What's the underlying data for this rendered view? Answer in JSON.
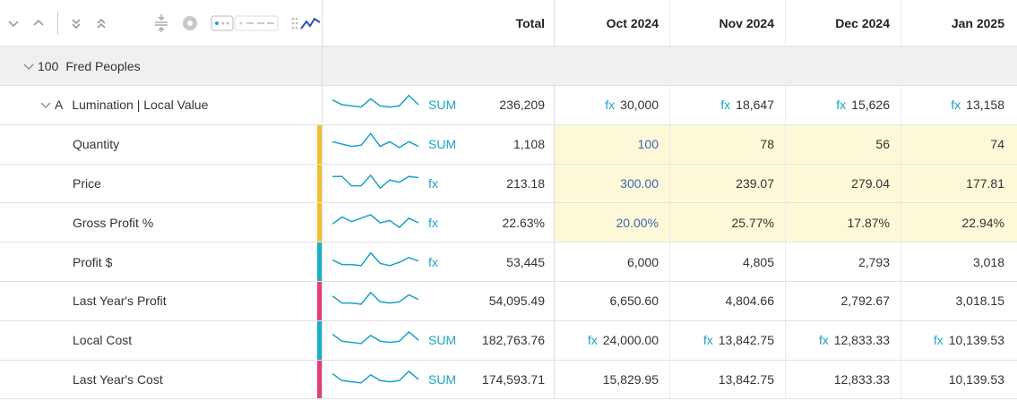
{
  "toolbar": {
    "icons": [
      "chevron-down-icon",
      "chevron-up-icon",
      "expand-all-icon",
      "collapse-all-icon",
      "align-icon",
      "settings-icon",
      "density-icon",
      "sparkline-toggle-icon"
    ]
  },
  "header": {
    "total": "Total",
    "months": [
      "Oct 2024",
      "Nov 2024",
      "Dec 2024",
      "Jan 2025"
    ]
  },
  "group": {
    "code": "100",
    "name": "Fred Peoples"
  },
  "rows": [
    {
      "label": "Lumination | Local Value",
      "prefix": "A",
      "agg": "SUM",
      "total": "236,209",
      "cells": [
        {
          "fx": true,
          "v": "30,000"
        },
        {
          "fx": true,
          "v": "18,647"
        },
        {
          "fx": true,
          "v": "15,626"
        },
        {
          "fx": true,
          "v": "13,158"
        }
      ],
      "spark": [
        0.7,
        0.5,
        0.45,
        0.4,
        0.75,
        0.45,
        0.4,
        0.45,
        0.9,
        0.5
      ]
    },
    {
      "label": "Quantity",
      "agg": "SUM",
      "total": "1,108",
      "bar": "#f0c030",
      "cells": [
        {
          "v": "100",
          "blue": true,
          "yellow": true
        },
        {
          "v": "78",
          "yellow": true
        },
        {
          "v": "56",
          "yellow": true
        },
        {
          "v": "74",
          "yellow": true
        }
      ],
      "spark": [
        0.6,
        0.5,
        0.4,
        0.45,
        0.95,
        0.4,
        0.6,
        0.35,
        0.6,
        0.4
      ]
    },
    {
      "label": "Price",
      "agg": "fx",
      "total": "213.18",
      "bar": "#f0c030",
      "cells": [
        {
          "v": "300.00",
          "blue": true,
          "yellow": true
        },
        {
          "v": "239.07",
          "yellow": true
        },
        {
          "v": "279.04",
          "yellow": true
        },
        {
          "v": "177.81",
          "yellow": true
        }
      ],
      "spark": [
        0.8,
        0.8,
        0.4,
        0.4,
        0.85,
        0.3,
        0.65,
        0.55,
        0.8,
        0.75
      ]
    },
    {
      "label": "Gross Profit %",
      "agg": "fx",
      "total": "22.63%",
      "bar": "#f0c030",
      "cells": [
        {
          "v": "20.00%",
          "blue": true,
          "yellow": true
        },
        {
          "v": "25.77%",
          "yellow": true
        },
        {
          "v": "17.87%",
          "yellow": true
        },
        {
          "v": "22.94%",
          "yellow": true
        }
      ],
      "spark": [
        0.45,
        0.75,
        0.55,
        0.7,
        0.85,
        0.5,
        0.6,
        0.3,
        0.7,
        0.5
      ]
    },
    {
      "label": "Profit $",
      "agg": "fx",
      "total": "53,445",
      "bar": "#1ab0c8",
      "cells": [
        {
          "v": "6,000"
        },
        {
          "v": "4,805"
        },
        {
          "v": "2,793"
        },
        {
          "v": "3,018"
        }
      ],
      "spark": [
        0.6,
        0.4,
        0.4,
        0.35,
        0.9,
        0.45,
        0.35,
        0.5,
        0.7,
        0.55
      ]
    },
    {
      "label": "Last Year's Profit",
      "agg": "",
      "total": "54,095.49",
      "bar": "#e0407a",
      "cells": [
        {
          "v": "6,650.60"
        },
        {
          "v": "4,804.66"
        },
        {
          "v": "2,792.67"
        },
        {
          "v": "3,018.15"
        }
      ],
      "spark": [
        0.7,
        0.4,
        0.4,
        0.35,
        0.85,
        0.45,
        0.4,
        0.45,
        0.75,
        0.55
      ]
    },
    {
      "label": "Local Cost",
      "agg": "SUM",
      "total": "182,763.76",
      "bar": "#1ab0c8",
      "cells": [
        {
          "fx": true,
          "v": "24,000.00"
        },
        {
          "fx": true,
          "v": "13,842.75"
        },
        {
          "fx": true,
          "v": "12,833.33"
        },
        {
          "fx": true,
          "v": "10,139.53"
        }
      ],
      "spark": [
        0.75,
        0.45,
        0.4,
        0.35,
        0.7,
        0.45,
        0.4,
        0.45,
        0.85,
        0.5
      ]
    },
    {
      "label": "Last Year's Cost",
      "agg": "SUM",
      "total": "174,593.71",
      "bar": "#e0407a",
      "cells": [
        {
          "v": "15,829.95"
        },
        {
          "v": "13,842.75"
        },
        {
          "v": "12,833.33"
        },
        {
          "v": "10,139.53"
        }
      ],
      "spark": [
        0.75,
        0.45,
        0.4,
        0.35,
        0.7,
        0.45,
        0.4,
        0.45,
        0.85,
        0.5
      ]
    }
  ]
}
